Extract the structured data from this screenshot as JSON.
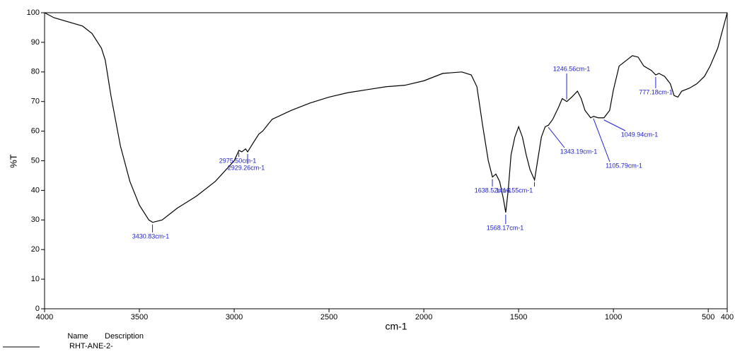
{
  "chart_data": {
    "type": "line",
    "xlabel": "cm-1",
    "ylabel": "%T",
    "xlim": [
      4000,
      400
    ],
    "ylim": [
      0,
      100
    ],
    "xticks": [
      4000,
      3500,
      3000,
      2500,
      2000,
      1500,
      1000,
      500,
      400
    ],
    "yticks": [
      0,
      10,
      20,
      30,
      40,
      50,
      60,
      70,
      80,
      90,
      100
    ],
    "x": [
      4000,
      3950,
      3800,
      3750,
      3700,
      3680,
      3650,
      3600,
      3550,
      3500,
      3450,
      3430,
      3380,
      3300,
      3200,
      3100,
      3000,
      2975,
      2960,
      2940,
      2929,
      2900,
      2870,
      2850,
      2800,
      2700,
      2600,
      2500,
      2400,
      2300,
      2200,
      2100,
      2000,
      1900,
      1800,
      1750,
      1720,
      1690,
      1660,
      1638,
      1620,
      1600,
      1580,
      1568,
      1555,
      1540,
      1520,
      1500,
      1480,
      1460,
      1440,
      1416,
      1400,
      1380,
      1360,
      1343,
      1320,
      1290,
      1270,
      1246,
      1220,
      1190,
      1170,
      1150,
      1120,
      1105,
      1080,
      1050,
      1020,
      1000,
      970,
      930,
      900,
      870,
      840,
      800,
      777,
      760,
      730,
      700,
      680,
      660,
      640,
      600,
      560,
      520,
      490,
      450,
      400
    ],
    "series": [
      {
        "name": "RHT-ANE-2-",
        "color": "#000000",
        "values": [
          100,
          98.3,
          95.5,
          93,
          88,
          84,
          72,
          55,
          43,
          35,
          30,
          29.2,
          30,
          34,
          38,
          43,
          50,
          53.5,
          53,
          54,
          53,
          56,
          59,
          60,
          64,
          67,
          69.5,
          71.5,
          73,
          74,
          75,
          75.5,
          77,
          79.5,
          80,
          79,
          75,
          62,
          50,
          44.5,
          45.5,
          43,
          37,
          32.5,
          40,
          52,
          58,
          61.5,
          58,
          52,
          47,
          43.5,
          50,
          58,
          61.5,
          62,
          64,
          68,
          71,
          70,
          71.5,
          73.5,
          71,
          67,
          64.5,
          65,
          64.5,
          64.5,
          67,
          74,
          82,
          84,
          85.5,
          85,
          82,
          80.5,
          79,
          79.5,
          78.5,
          76,
          72,
          71.5,
          73.5,
          74.5,
          76,
          78.5,
          82,
          88,
          100
        ]
      }
    ],
    "annotations": [
      {
        "x": 3430.83,
        "y": 29.2,
        "label": "3430.83cm-1"
      },
      {
        "x": 2975.5,
        "y": 53.5,
        "label": "2975.50cm-1"
      },
      {
        "x": 2929.26,
        "y": 53,
        "label": "2929.26cm-1"
      },
      {
        "x": 1638.52,
        "y": 44.5,
        "label": "1638.52cm-1"
      },
      {
        "x": 1568.17,
        "y": 32.5,
        "label": "1568.17cm-1"
      },
      {
        "x": 1416.55,
        "y": 43.5,
        "label": "1416.55cm-1"
      },
      {
        "x": 1343.19,
        "y": 62,
        "label": "1343.19cm-1"
      },
      {
        "x": 1246.56,
        "y": 70,
        "label": "1246.56cm-1"
      },
      {
        "x": 1105.79,
        "y": 65,
        "label": "1105.79cm-1"
      },
      {
        "x": 1049.94,
        "y": 64.5,
        "label": "1049.94cm-1"
      },
      {
        "x": 777.18,
        "y": 79,
        "label": "777.18cm-1"
      }
    ],
    "legend_headers": [
      "Name",
      "Description"
    ]
  }
}
